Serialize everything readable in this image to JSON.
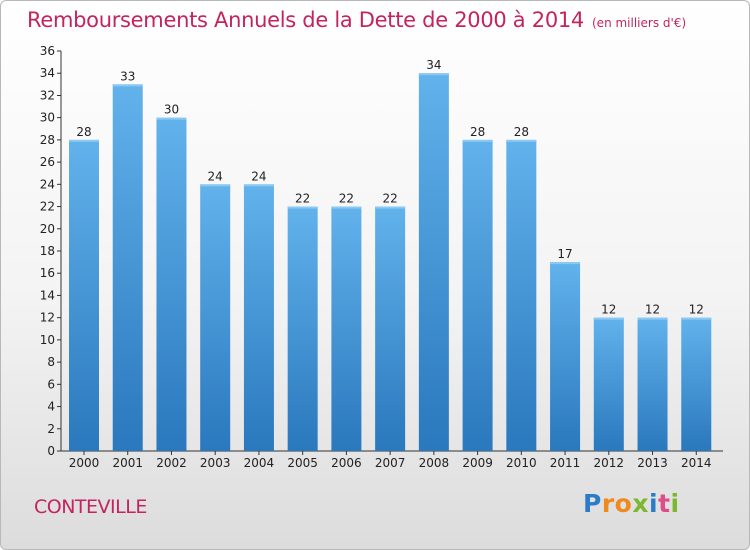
{
  "title": "Remboursements Annuels de la Dette de 2000 à 2014",
  "unit": "(en milliers d'€)",
  "commune": "CONTEVILLE",
  "logo": {
    "letters": [
      {
        "ch": "P",
        "color": "#2a7cc7"
      },
      {
        "ch": "r",
        "color": "#f08a1c"
      },
      {
        "ch": "o",
        "color": "#f08a1c"
      },
      {
        "ch": "x",
        "color": "#7cb82f"
      },
      {
        "ch": "i",
        "color": "#2a7cc7"
      },
      {
        "ch": "t",
        "color": "#e04b8a"
      },
      {
        "ch": "i",
        "color": "#7cb82f"
      }
    ]
  },
  "colors": {
    "bar": "#3a8fd4",
    "bar_light": "#5eaee8",
    "text": "#222222",
    "accent": "#c4245e"
  },
  "chart_data": {
    "type": "bar",
    "categories": [
      "2000",
      "2001",
      "2002",
      "2003",
      "2004",
      "2005",
      "2006",
      "2007",
      "2008",
      "2009",
      "2010",
      "2011",
      "2012",
      "2013",
      "2014"
    ],
    "values": [
      28,
      33,
      30,
      24,
      24,
      22,
      22,
      22,
      34,
      28,
      28,
      17,
      12,
      12,
      12
    ],
    "ylim": [
      0,
      36
    ],
    "yticks": [
      0,
      2,
      4,
      6,
      8,
      10,
      12,
      14,
      16,
      18,
      20,
      22,
      24,
      26,
      28,
      30,
      32,
      34,
      36
    ],
    "grid": false,
    "data_labels": true
  }
}
